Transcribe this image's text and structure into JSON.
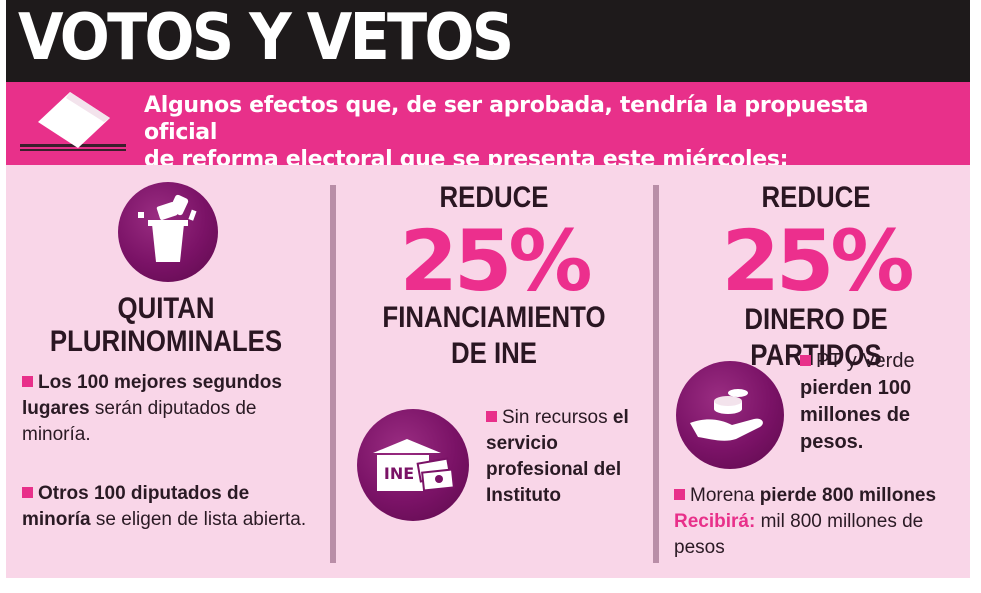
{
  "header": {
    "title": "VOTOS Y VETOS"
  },
  "intro": {
    "line1": "Algunos efectos que, de ser aprobada, tendría la propuesta oficial",
    "line2": "de reforma electoral que se presenta este miércoles:"
  },
  "col1": {
    "heading_line1": "QUITAN",
    "heading_line2": "PLURINOMINALES",
    "item1": {
      "bold": "Los 100 mejores segundos lugares",
      "rest": "serán diputados de minoría."
    },
    "item2": {
      "bold": "Otros 100 diputados de minoría",
      "rest": "se eligen de lista abierta."
    }
  },
  "col2": {
    "top": "REDUCE",
    "percent": "25%",
    "heading_line1": "FINANCIAMIENTO",
    "heading_line2": "DE INE",
    "icon_text": "INE",
    "note_plain": "Sin recursos",
    "note_bold": "el servicio profesional del Instituto"
  },
  "col3": {
    "top": "REDUCE",
    "percent": "25%",
    "heading": "DINERO DE PARTIDOS",
    "note1_plain": "PT y Verde",
    "note1_bold": "pierden 100 millones de pesos.",
    "note2_plain": "Morena",
    "note2_bold": "pierde 800 millones",
    "note2_label": "Recibirá:",
    "note2_rest": "mil 800 millones de pesos"
  },
  "colors": {
    "black": "#1e1a1b",
    "magenta": "#e8308a",
    "background": "#f9d6e8",
    "purple": "#7a1266"
  }
}
